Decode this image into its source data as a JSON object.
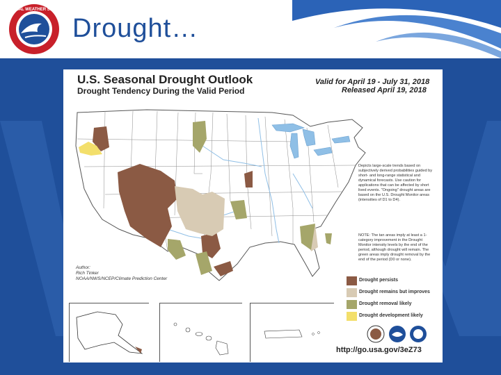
{
  "slide": {
    "title": "Drought…"
  },
  "map": {
    "title": "U.S. Seasonal Drought Outlook",
    "subtitle": "Drought Tendency During the Valid Period",
    "valid": "Valid for April 19 - July 31, 2018",
    "released": "Released April 19, 2018",
    "description": "Depicts large-scale trends based on subjectively derived probabilities guided by short- and long-range statistical and dynamical forecasts. Use caution for applications that can be affected by short lived events. \"Ongoing\" drought areas are based on the U.S. Drought Monitor areas (intensities of D1 to D4).",
    "note": "NOTE: The tan areas imply at least a 1-category improvement in the Drought Monitor intensity levels by the end of the period, although drought will remain. The green areas imply drought removal by the end of the period (D0 or none).",
    "author": [
      "Author:",
      "Rich Tinker",
      "NOAA/NWS/NCEP/Climate Prediction Center"
    ],
    "legend": [
      {
        "label": "Drought persists",
        "color": "#8b5a44"
      },
      {
        "label": "Drought remains but improves",
        "color": "#d8cbb4"
      },
      {
        "label": "Drought removal likely",
        "color": "#a5a66a"
      },
      {
        "label": "Drought development likely",
        "color": "#f3df6b"
      }
    ],
    "url": "http://go.usa.gov/3eZ73",
    "logo_text": "NATIONAL WEATHER SERVICE"
  },
  "colors": {
    "brand_blue": "#1f4f9a",
    "water": "#8fbfe6"
  }
}
